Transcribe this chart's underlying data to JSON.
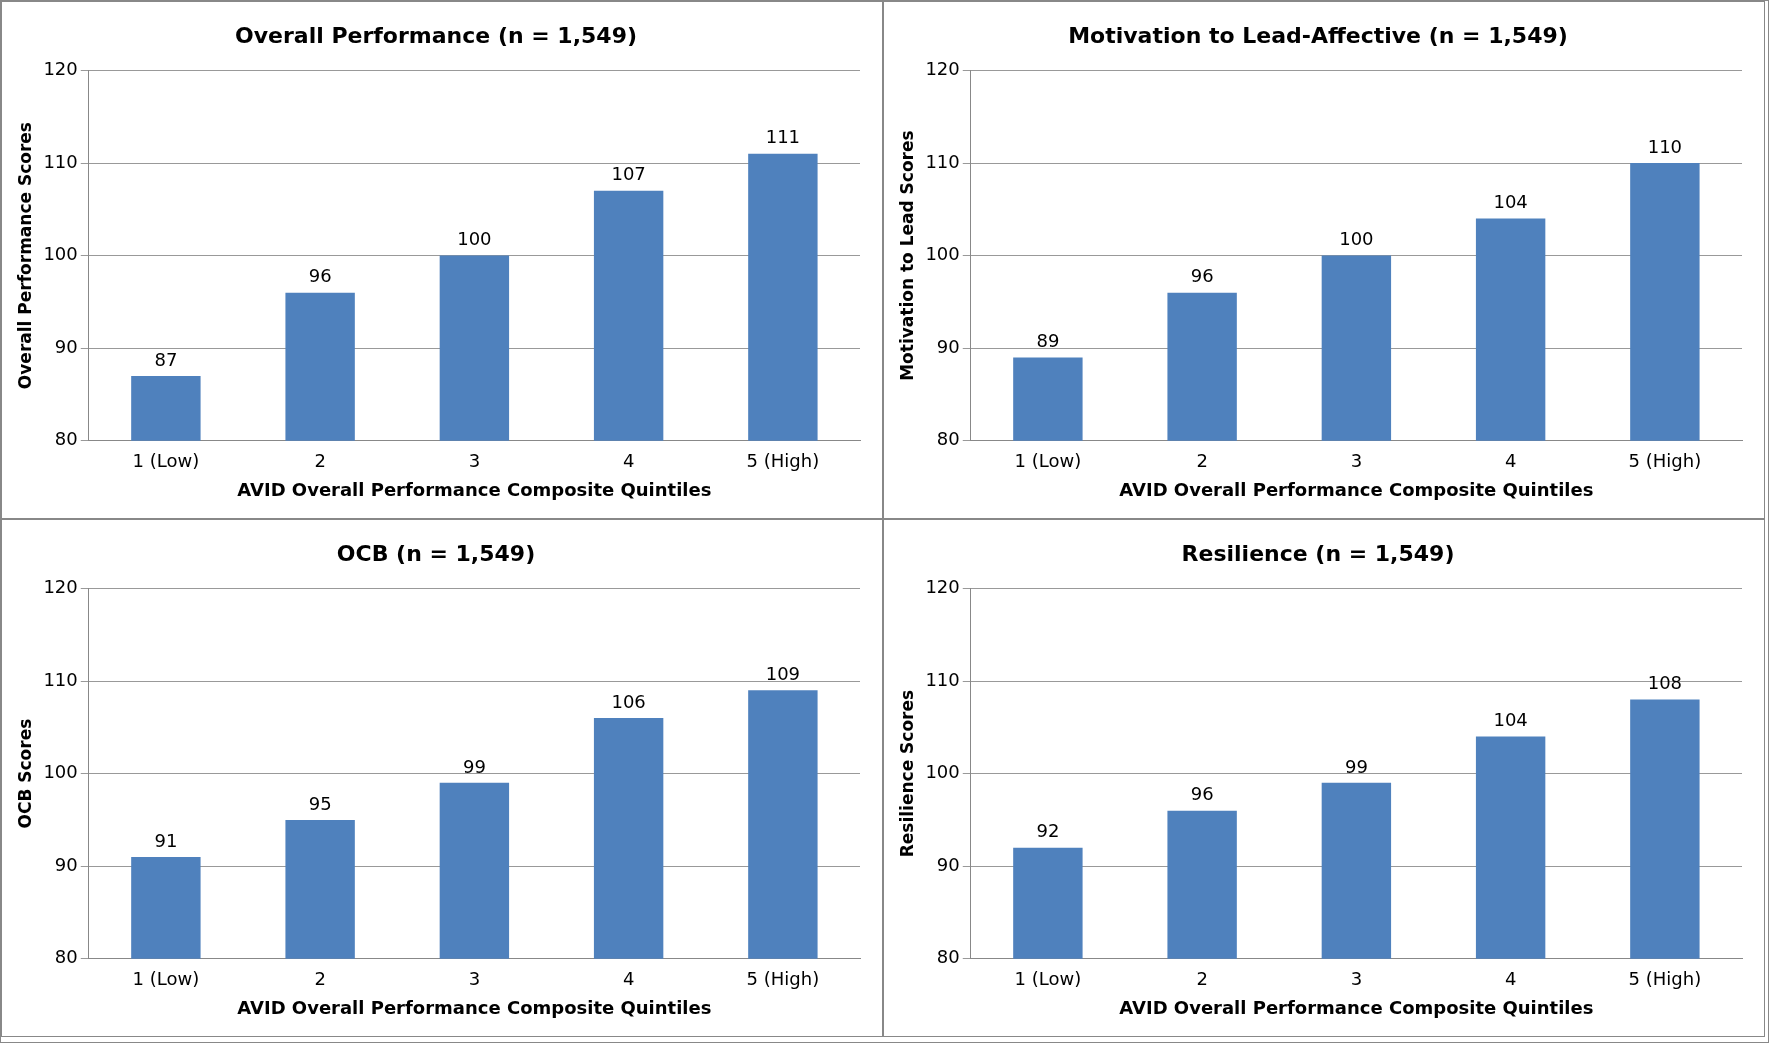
{
  "chart_data": [
    {
      "type": "bar",
      "title": "Overall Performance (n = 1,549)",
      "xlabel": "AVID Overall Performance Composite Quintiles",
      "ylabel": "Overall Performance Scores",
      "categories": [
        "1 (Low)",
        "2",
        "3",
        "4",
        "5 (High)"
      ],
      "values": [
        87,
        96,
        100,
        107,
        111
      ],
      "color": "#4f81bd",
      "ylim": [
        80,
        120
      ],
      "yticks": [
        80,
        90,
        100,
        110,
        120
      ],
      "grid": "y",
      "data_labels": true,
      "legend": false
    },
    {
      "type": "bar",
      "title": "Motivation to Lead-Affective (n = 1,549)",
      "xlabel": "AVID Overall Performance Composite Quintiles",
      "ylabel": "Motivation to Lead Scores",
      "categories": [
        "1 (Low)",
        "2",
        "3",
        "4",
        "5 (High)"
      ],
      "values": [
        89,
        96,
        100,
        104,
        110
      ],
      "color": "#4f81bd",
      "ylim": [
        80,
        120
      ],
      "yticks": [
        80,
        90,
        100,
        110,
        120
      ],
      "grid": "y",
      "data_labels": true,
      "legend": false
    },
    {
      "type": "bar",
      "title": "OCB (n = 1,549)",
      "xlabel": "AVID Overall Performance Composite Quintiles",
      "ylabel": "OCB Scores",
      "categories": [
        "1 (Low)",
        "2",
        "3",
        "4",
        "5 (High)"
      ],
      "values": [
        91,
        95,
        99,
        106,
        109
      ],
      "color": "#4f81bd",
      "ylim": [
        80,
        120
      ],
      "yticks": [
        80,
        90,
        100,
        110,
        120
      ],
      "grid": "y",
      "data_labels": true,
      "legend": false
    },
    {
      "type": "bar",
      "title": "Resilience (n = 1,549)",
      "xlabel": "AVID Overall Performance Composite Quintiles",
      "ylabel": "Resilience Scores",
      "categories": [
        "1 (Low)",
        "2",
        "3",
        "4",
        "5 (High)"
      ],
      "values": [
        92,
        96,
        99,
        104,
        108
      ],
      "color": "#4f81bd",
      "ylim": [
        80,
        120
      ],
      "yticks": [
        80,
        90,
        100,
        110,
        120
      ],
      "grid": "y",
      "data_labels": true,
      "legend": false
    }
  ]
}
